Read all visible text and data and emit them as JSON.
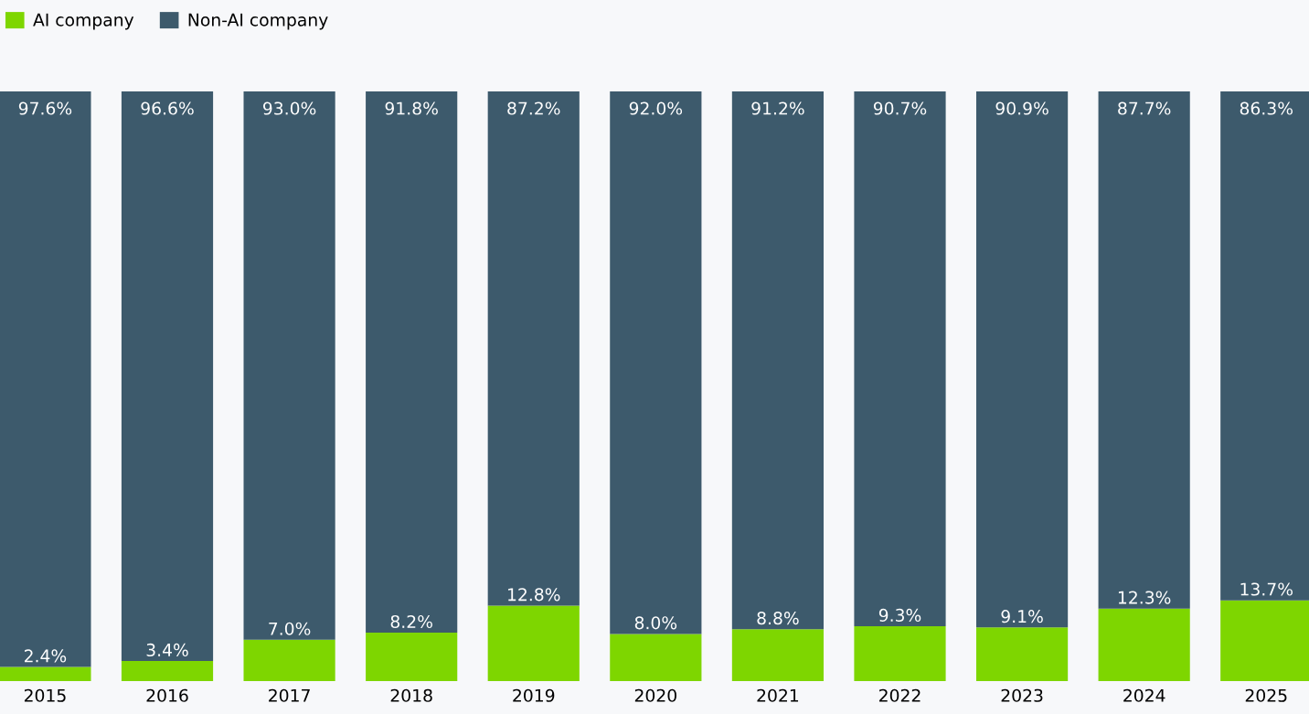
{
  "chart_data": {
    "type": "bar",
    "stacked": true,
    "categories": [
      "2015",
      "2016",
      "2017",
      "2018",
      "2019",
      "2020",
      "2021",
      "2022",
      "2023",
      "2024",
      "2025"
    ],
    "series": [
      {
        "name": "AI company",
        "color": "#7ed600",
        "values": [
          2.4,
          3.4,
          7.0,
          8.2,
          12.8,
          8.0,
          8.8,
          9.3,
          9.1,
          12.3,
          13.7
        ],
        "value_labels": [
          "2.4%",
          "3.4%",
          "7.0%",
          "8.2%",
          "12.8%",
          "8.0%",
          "8.8%",
          "9.3%",
          "9.1%",
          "12.3%",
          "13.7%"
        ]
      },
      {
        "name": "Non-AI company",
        "color": "#3d5a6c",
        "values": [
          97.6,
          96.6,
          93.0,
          91.8,
          87.2,
          92.0,
          91.2,
          90.7,
          90.9,
          87.7,
          86.3
        ],
        "value_labels": [
          "97.6%",
          "96.6%",
          "93.0%",
          "91.8%",
          "87.2%",
          "92.0%",
          "91.2%",
          "90.7%",
          "90.9%",
          "87.7%",
          "86.3%"
        ]
      }
    ],
    "ylim": [
      0,
      100
    ],
    "tick_labels": "x",
    "legend": "top left",
    "grid": false
  }
}
